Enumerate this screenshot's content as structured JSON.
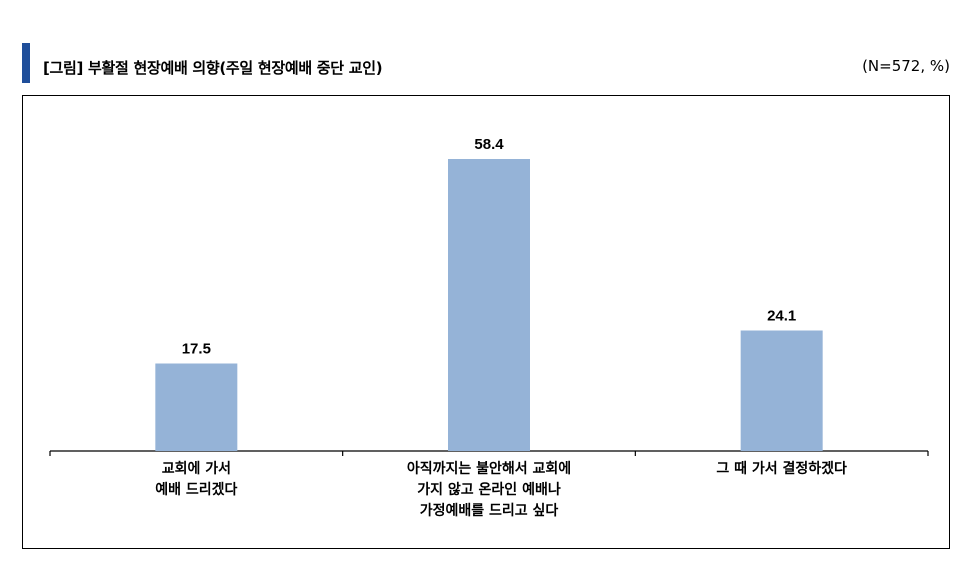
{
  "header": {
    "title": "[그림] 부활절 현장예배 의향(주일 현장예배 중단 교인)",
    "note": "(N=572, %)",
    "accent_color": "#1f4e9a"
  },
  "chart_data": {
    "type": "bar",
    "categories": [
      [
        "교회에 가서",
        "예배 드리겠다"
      ],
      [
        "아직까지는 불안해서 교회에",
        "가지 않고 온라인 예배나",
        "가정예배를 드리고 싶다"
      ],
      [
        "그 때 가서 결정하겠다"
      ]
    ],
    "values": [
      17.5,
      58.4,
      24.1
    ],
    "value_labels": [
      "17.5",
      "58.4",
      "24.1"
    ],
    "bar_color": "#95b3d7",
    "ylim": [
      0,
      70
    ],
    "grid": false,
    "legend": "none"
  }
}
